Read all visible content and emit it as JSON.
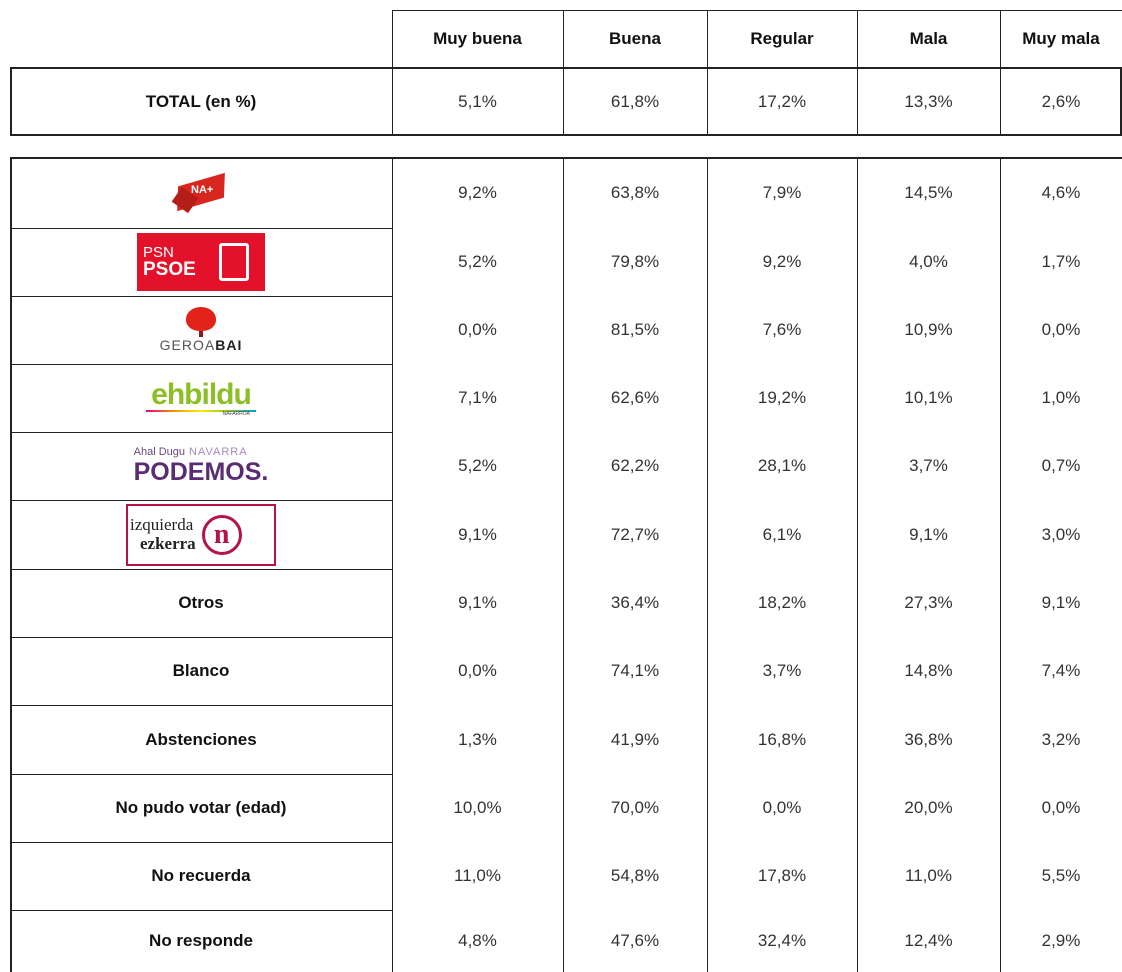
{
  "table": {
    "columns": [
      "Muy buena",
      "Buena",
      "Regular",
      "Mala",
      "Muy mala"
    ],
    "total": {
      "label": "TOTAL (en %)",
      "values": [
        "5,1%",
        "61,8%",
        "17,2%",
        "13,3%",
        "2,6%"
      ]
    },
    "rows": [
      {
        "logo": {
          "text": "NA+"
        },
        "values": [
          "9,2%",
          "63,8%",
          "7,9%",
          "14,5%",
          "4,6%"
        ]
      },
      {
        "logo": {
          "top": "PSN",
          "bottom": "PSOE"
        },
        "values": [
          "5,2%",
          "79,8%",
          "9,2%",
          "4,0%",
          "1,7%"
        ]
      },
      {
        "logo": {
          "light": "GEROA",
          "bold": "BAI"
        },
        "values": [
          "0,0%",
          "81,5%",
          "7,6%",
          "10,9%",
          "0,0%"
        ]
      },
      {
        "logo": {
          "main": "ehbildu",
          "sub": "NAFARROA"
        },
        "values": [
          "7,1%",
          "62,6%",
          "19,2%",
          "10,1%",
          "1,0%"
        ]
      },
      {
        "logo": {
          "top": "Ahal Dugu",
          "accent": "NAVARRA",
          "main": "PODEMOS."
        },
        "values": [
          "5,2%",
          "62,2%",
          "28,1%",
          "3,7%",
          "0,7%"
        ]
      },
      {
        "logo": {
          "top": "izquierda",
          "bottom": "ezkerra",
          "badge": "n"
        },
        "values": [
          "9,1%",
          "72,7%",
          "6,1%",
          "9,1%",
          "3,0%"
        ]
      },
      {
        "label": "Otros",
        "values": [
          "9,1%",
          "36,4%",
          "18,2%",
          "27,3%",
          "9,1%"
        ]
      },
      {
        "label": "Blanco",
        "values": [
          "0,0%",
          "74,1%",
          "3,7%",
          "14,8%",
          "7,4%"
        ]
      },
      {
        "label": "Abstenciones",
        "values": [
          "1,3%",
          "41,9%",
          "16,8%",
          "36,8%",
          "3,2%"
        ]
      },
      {
        "label": "No pudo votar (edad)",
        "values": [
          "10,0%",
          "70,0%",
          "0,0%",
          "20,0%",
          "0,0%"
        ]
      },
      {
        "label": "No recuerda",
        "values": [
          "11,0%",
          "54,8%",
          "17,8%",
          "11,0%",
          "5,5%"
        ]
      },
      {
        "label": "No responde",
        "values": [
          "4,8%",
          "47,6%",
          "32,4%",
          "12,4%",
          "2,9%"
        ]
      }
    ]
  }
}
